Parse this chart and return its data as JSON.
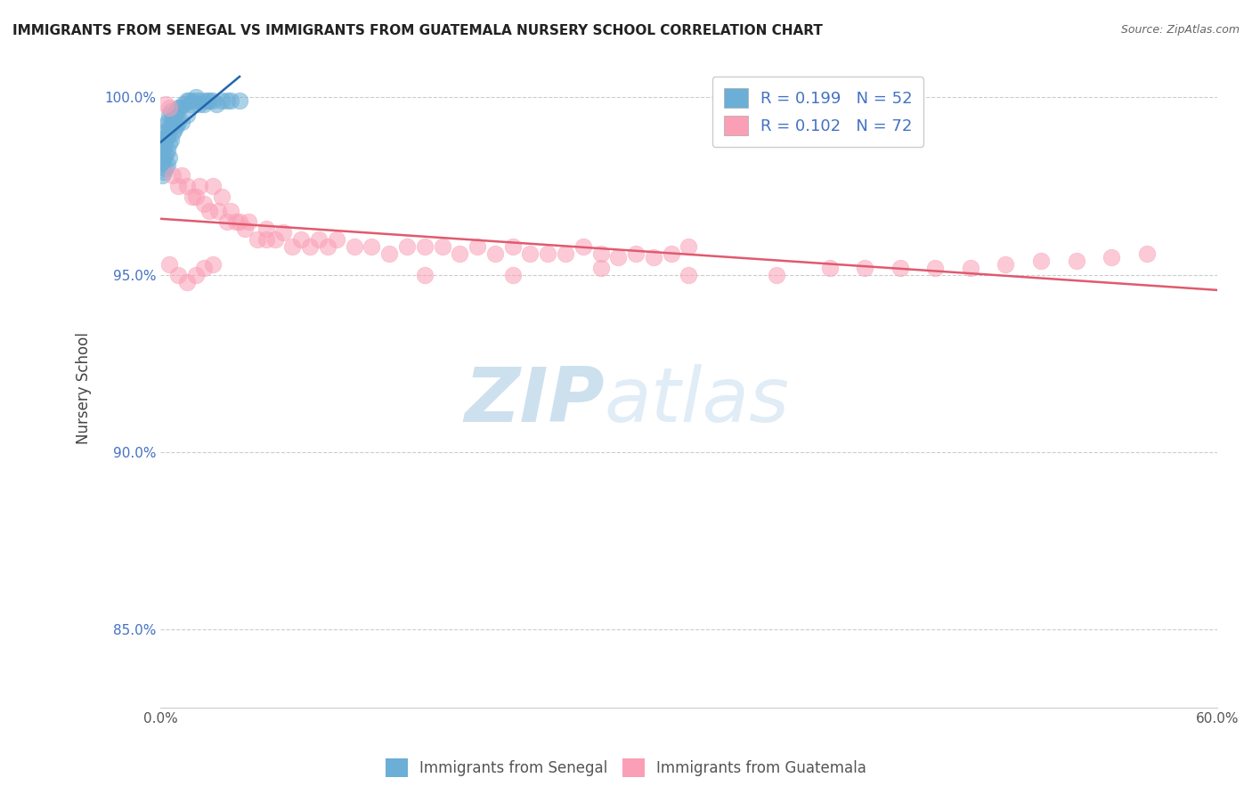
{
  "title": "IMMIGRANTS FROM SENEGAL VS IMMIGRANTS FROM GUATEMALA NURSERY SCHOOL CORRELATION CHART",
  "source": "Source: ZipAtlas.com",
  "ylabel": "Nursery School",
  "xlim": [
    0.0,
    0.6
  ],
  "ylim": [
    0.828,
    1.008
  ],
  "xticks": [
    0.0,
    0.1,
    0.2,
    0.3,
    0.4,
    0.5,
    0.6
  ],
  "xticklabels": [
    "0.0%",
    "",
    "",
    "",
    "",
    "",
    "60.0%"
  ],
  "yticks": [
    0.85,
    0.9,
    0.95,
    1.0
  ],
  "yticklabels": [
    "85.0%",
    "90.0%",
    "95.0%",
    "100.0%"
  ],
  "legend_label1": "Immigrants from Senegal",
  "legend_label2": "Immigrants from Guatemala",
  "r1": 0.199,
  "n1": 52,
  "r2": 0.102,
  "n2": 72,
  "color1": "#6baed6",
  "color2": "#fa9fb5",
  "trendline1_color": "#2166ac",
  "trendline2_color": "#e05a6e",
  "watermark_zip": "ZIP",
  "watermark_atlas": "atlas",
  "senegal_x": [
    0.001,
    0.001,
    0.001,
    0.001,
    0.002,
    0.002,
    0.002,
    0.002,
    0.003,
    0.003,
    0.003,
    0.003,
    0.004,
    0.004,
    0.004,
    0.004,
    0.005,
    0.005,
    0.005,
    0.005,
    0.006,
    0.006,
    0.006,
    0.007,
    0.007,
    0.008,
    0.008,
    0.009,
    0.009,
    0.01,
    0.01,
    0.011,
    0.012,
    0.013,
    0.015,
    0.015,
    0.016,
    0.017,
    0.018,
    0.02,
    0.021,
    0.022,
    0.024,
    0.025,
    0.027,
    0.028,
    0.03,
    0.032,
    0.035,
    0.038,
    0.04,
    0.045
  ],
  "senegal_y": [
    0.988,
    0.985,
    0.982,
    0.978,
    0.99,
    0.987,
    0.983,
    0.979,
    0.992,
    0.988,
    0.984,
    0.98,
    0.993,
    0.989,
    0.985,
    0.981,
    0.995,
    0.991,
    0.987,
    0.983,
    0.996,
    0.992,
    0.988,
    0.994,
    0.99,
    0.995,
    0.991,
    0.996,
    0.992,
    0.997,
    0.993,
    0.997,
    0.993,
    0.998,
    0.999,
    0.995,
    0.999,
    0.998,
    0.999,
    1.0,
    0.999,
    0.998,
    0.999,
    0.998,
    0.999,
    0.999,
    0.999,
    0.998,
    0.999,
    0.999,
    0.999,
    0.999
  ],
  "guatemala_x": [
    0.003,
    0.005,
    0.007,
    0.01,
    0.012,
    0.015,
    0.018,
    0.02,
    0.022,
    0.025,
    0.028,
    0.03,
    0.033,
    0.035,
    0.038,
    0.04,
    0.043,
    0.045,
    0.048,
    0.05,
    0.055,
    0.06,
    0.065,
    0.07,
    0.075,
    0.08,
    0.085,
    0.09,
    0.095,
    0.1,
    0.11,
    0.12,
    0.13,
    0.14,
    0.15,
    0.16,
    0.17,
    0.18,
    0.19,
    0.2,
    0.21,
    0.22,
    0.23,
    0.24,
    0.25,
    0.26,
    0.27,
    0.28,
    0.29,
    0.3,
    0.15,
    0.2,
    0.25,
    0.3,
    0.35,
    0.38,
    0.4,
    0.42,
    0.44,
    0.46,
    0.48,
    0.5,
    0.52,
    0.54,
    0.56,
    0.005,
    0.01,
    0.015,
    0.02,
    0.025,
    0.03,
    0.06
  ],
  "guatemala_y": [
    0.998,
    0.997,
    0.978,
    0.975,
    0.978,
    0.975,
    0.972,
    0.972,
    0.975,
    0.97,
    0.968,
    0.975,
    0.968,
    0.972,
    0.965,
    0.968,
    0.965,
    0.965,
    0.963,
    0.965,
    0.96,
    0.963,
    0.96,
    0.962,
    0.958,
    0.96,
    0.958,
    0.96,
    0.958,
    0.96,
    0.958,
    0.958,
    0.956,
    0.958,
    0.958,
    0.958,
    0.956,
    0.958,
    0.956,
    0.958,
    0.956,
    0.956,
    0.956,
    0.958,
    0.956,
    0.955,
    0.956,
    0.955,
    0.956,
    0.958,
    0.95,
    0.95,
    0.952,
    0.95,
    0.95,
    0.952,
    0.952,
    0.952,
    0.952,
    0.952,
    0.953,
    0.954,
    0.954,
    0.955,
    0.956,
    0.953,
    0.95,
    0.948,
    0.95,
    0.952,
    0.953,
    0.96
  ]
}
